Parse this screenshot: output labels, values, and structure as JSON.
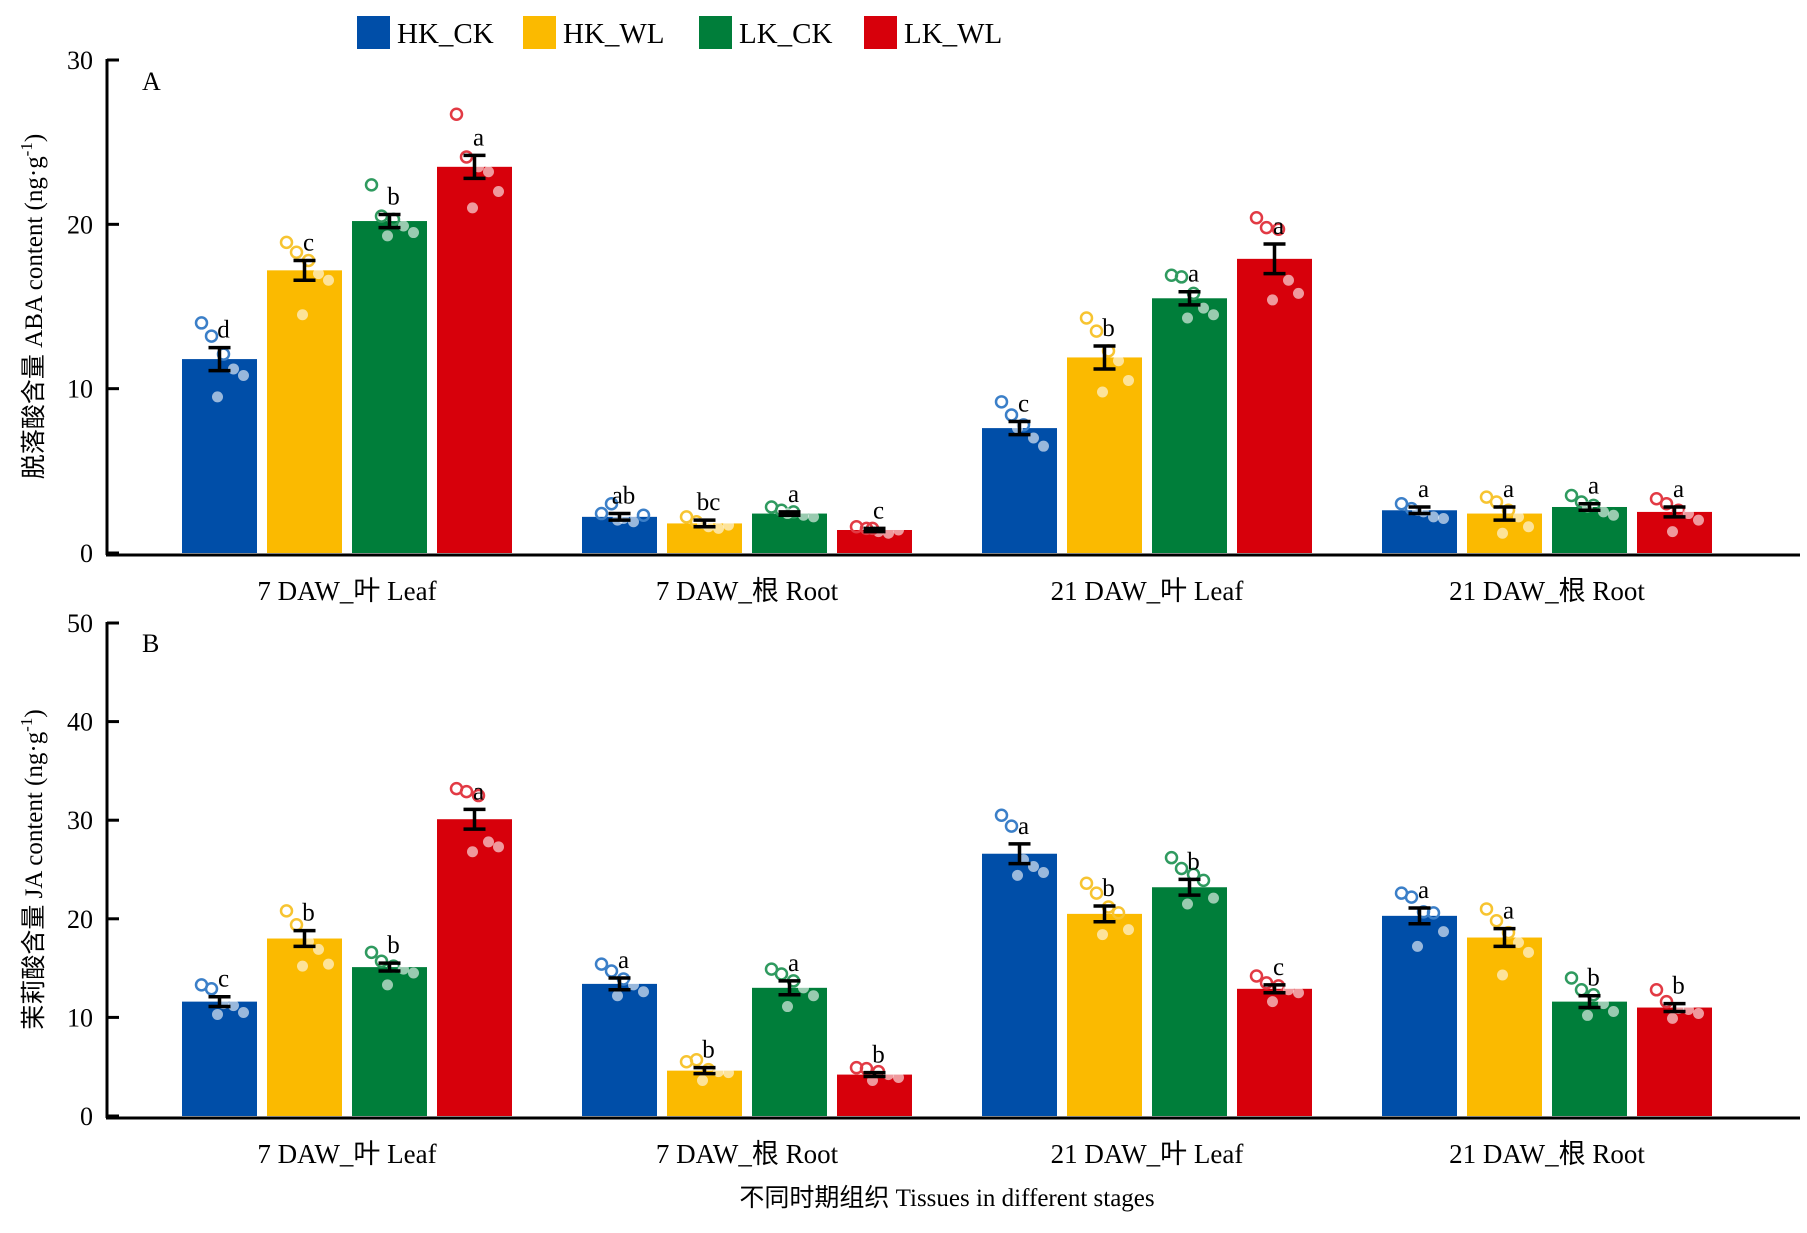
{
  "chart_data": [
    {
      "type": "bar",
      "panel": "A",
      "ylabel": "脱落酸含量 ABA content (ng·g-1)",
      "ylim": [
        0,
        30
      ],
      "yticks": [
        0,
        10,
        20,
        30
      ],
      "categories": [
        "7 DAW_叶 Leaf",
        "7 DAW_根 Root",
        "21 DAW_叶 Leaf",
        "21 DAW_根 Root"
      ],
      "series": [
        {
          "name": "HK_CK",
          "values": [
            11.8,
            2.2,
            7.6,
            2.6
          ],
          "errors": [
            0.7,
            0.2,
            0.4,
            0.2
          ],
          "letters": [
            "d",
            "ab",
            "c",
            "a"
          ],
          "points": [
            [
              14.0,
              13.2,
              12.1,
              11.2,
              10.8,
              9.5
            ],
            [
              2.4,
              3.0,
              2.1,
              1.9,
              2.3,
              2.0
            ],
            [
              9.2,
              8.4,
              7.8,
              7.0,
              6.5,
              7.6
            ],
            [
              3.0,
              2.7,
              2.5,
              2.2,
              2.1,
              2.6
            ]
          ]
        },
        {
          "name": "HK_WL",
          "values": [
            17.2,
            1.8,
            11.9,
            2.4
          ],
          "errors": [
            0.6,
            0.2,
            0.7,
            0.4
          ],
          "letters": [
            "c",
            "bc",
            "b",
            "a"
          ],
          "points": [
            [
              18.9,
              18.3,
              17.8,
              17.0,
              16.6,
              14.5
            ],
            [
              2.2,
              1.9,
              1.6,
              1.5,
              1.7,
              1.8
            ],
            [
              14.3,
              13.5,
              12.3,
              11.7,
              10.5,
              9.8
            ],
            [
              3.4,
              3.1,
              2.6,
              2.2,
              1.6,
              1.2
            ]
          ]
        },
        {
          "name": "LK_CK",
          "values": [
            20.2,
            2.4,
            15.5,
            2.8
          ],
          "errors": [
            0.4,
            0.1,
            0.4,
            0.2
          ],
          "letters": [
            "b",
            "a",
            "a",
            "a"
          ],
          "points": [
            [
              22.4,
              20.5,
              20.3,
              19.9,
              19.5,
              19.3
            ],
            [
              2.8,
              2.6,
              2.5,
              2.3,
              2.2,
              2.4
            ],
            [
              16.9,
              16.8,
              15.8,
              14.9,
              14.5,
              14.3
            ],
            [
              3.5,
              3.1,
              2.9,
              2.5,
              2.3,
              2.8
            ]
          ]
        },
        {
          "name": "LK_WL",
          "values": [
            23.5,
            1.4,
            17.9,
            2.5
          ],
          "errors": [
            0.7,
            0.1,
            0.9,
            0.3
          ],
          "letters": [
            "a",
            "c",
            "a",
            "a"
          ],
          "points": [
            [
              26.7,
              24.1,
              23.5,
              23.2,
              22.0,
              21.0
            ],
            [
              1.6,
              1.5,
              1.3,
              1.2,
              1.4,
              1.5
            ],
            [
              20.4,
              19.8,
              19.7,
              16.6,
              15.8,
              15.4
            ],
            [
              3.3,
              3.0,
              2.6,
              2.4,
              2.0,
              1.3
            ]
          ]
        }
      ]
    },
    {
      "type": "bar",
      "panel": "B",
      "ylabel": "茉莉酸含量 JA content (ng·g-1)",
      "xlabel": "不同时期组织 Tissues in different stages",
      "ylim": [
        0,
        50
      ],
      "yticks": [
        0,
        10,
        20,
        30,
        40,
        50
      ],
      "categories": [
        "7 DAW_叶 Leaf",
        "7 DAW_根 Root",
        "21 DAW_叶 Leaf",
        "21 DAW_根 Root"
      ],
      "series": [
        {
          "name": "HK_CK",
          "values": [
            11.6,
            13.4,
            26.6,
            20.3
          ],
          "errors": [
            0.5,
            0.6,
            1.0,
            0.8
          ],
          "letters": [
            "c",
            "a",
            "a",
            "a"
          ],
          "points": [
            [
              13.3,
              12.9,
              11.4,
              11.2,
              10.5,
              10.3
            ],
            [
              15.4,
              14.7,
              13.9,
              13.3,
              12.6,
              12.2
            ],
            [
              30.5,
              29.4,
              26.0,
              25.3,
              24.7,
              24.4
            ],
            [
              22.6,
              22.2,
              20.7,
              20.6,
              18.7,
              17.2
            ]
          ]
        },
        {
          "name": "HK_WL",
          "values": [
            18.0,
            4.6,
            20.5,
            18.1
          ],
          "errors": [
            0.8,
            0.3,
            0.8,
            0.9
          ],
          "letters": [
            "b",
            "b",
            "b",
            "a"
          ],
          "points": [
            [
              20.8,
              19.4,
              17.7,
              16.9,
              15.4,
              15.2
            ],
            [
              5.5,
              5.7,
              4.7,
              4.5,
              4.4,
              3.6
            ],
            [
              23.6,
              22.6,
              21.2,
              20.6,
              18.9,
              18.4
            ],
            [
              21.0,
              19.8,
              18.6,
              17.6,
              16.6,
              14.3
            ]
          ]
        },
        {
          "name": "LK_CK",
          "values": [
            15.1,
            13.0,
            23.2,
            11.6
          ],
          "errors": [
            0.4,
            0.7,
            0.8,
            0.6
          ],
          "letters": [
            "b",
            "a",
            "b",
            "b"
          ],
          "points": [
            [
              16.6,
              15.7,
              15.2,
              14.9,
              14.5,
              13.3
            ],
            [
              14.9,
              14.4,
              13.7,
              13.0,
              12.2,
              11.1
            ],
            [
              26.2,
              25.1,
              24.5,
              23.9,
              22.1,
              21.5
            ],
            [
              14.0,
              12.8,
              12.3,
              11.4,
              10.6,
              10.2
            ]
          ]
        },
        {
          "name": "LK_WL",
          "values": [
            30.1,
            4.2,
            12.9,
            11.0
          ],
          "errors": [
            1.0,
            0.2,
            0.4,
            0.4
          ],
          "letters": [
            "a",
            "b",
            "c",
            "b"
          ],
          "points": [
            [
              33.2,
              32.9,
              32.5,
              27.8,
              27.3,
              26.8
            ],
            [
              4.9,
              4.8,
              4.5,
              4.2,
              3.9,
              3.6
            ],
            [
              14.2,
              13.5,
              13.2,
              12.8,
              12.5,
              11.6
            ],
            [
              12.8,
              11.6,
              10.9,
              10.8,
              10.4,
              9.9
            ]
          ]
        }
      ]
    }
  ],
  "legend": {
    "placement": "top-center",
    "items": [
      {
        "label": "HK_CK",
        "color": "#004ea8"
      },
      {
        "label": "HK_WL",
        "color": "#fbba00"
      },
      {
        "label": "LK_CK",
        "color": "#007e3a"
      },
      {
        "label": "LK_WL",
        "color": "#d7000b"
      }
    ]
  },
  "colors": {
    "HK_CK": {
      "bar": "#004ea8",
      "point": "#3b7fc8"
    },
    "HK_WL": {
      "bar": "#fbba00",
      "point": "#f7c431"
    },
    "LK_CK": {
      "bar": "#007e3a",
      "point": "#2f9a5f"
    },
    "LK_WL": {
      "bar": "#d7000b",
      "point": "#e23a44"
    }
  },
  "ylabel_unit_superscript": "-1"
}
